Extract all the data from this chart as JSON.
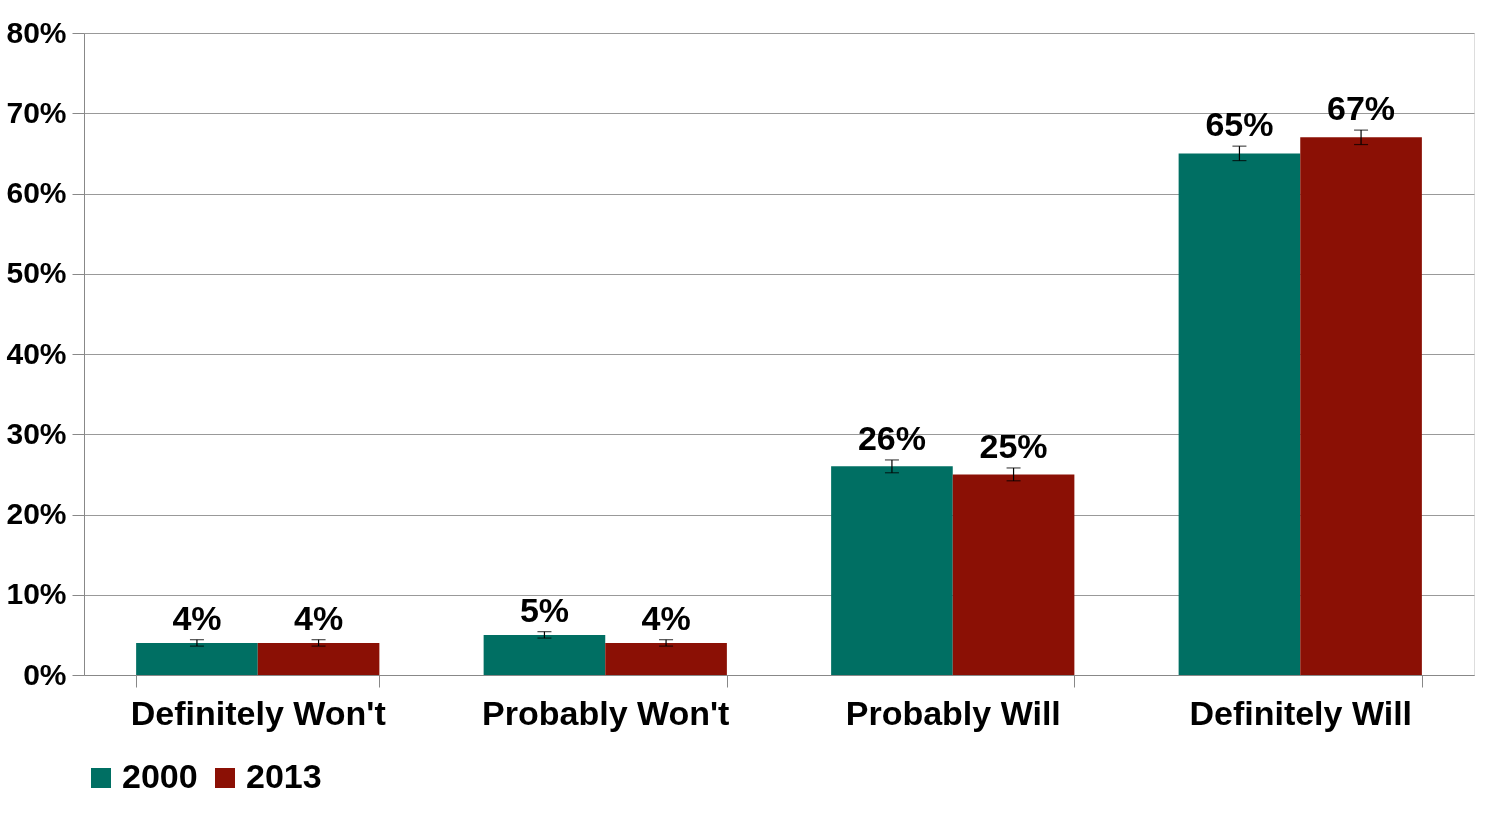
{
  "chart_data": {
    "type": "bar",
    "categories": [
      "Definitely Won't",
      "Probably Won't",
      "Probably Will",
      "Definitely Will"
    ],
    "series": [
      {
        "name": "2000",
        "color": "#006f63",
        "values": [
          4,
          5,
          26,
          65
        ],
        "errors": [
          0.4,
          0.4,
          0.8,
          0.9
        ],
        "value_labels": [
          "4%",
          "5%",
          "26%",
          "65%"
        ]
      },
      {
        "name": "2013",
        "color": "#8b1005",
        "values": [
          4,
          4,
          25,
          67
        ],
        "errors": [
          0.4,
          0.4,
          0.8,
          0.9
        ],
        "value_labels": [
          "4%",
          "4%",
          "25%",
          "67%"
        ]
      }
    ],
    "ylim": [
      0,
      80
    ],
    "yticks": [
      {
        "value": 0,
        "label": "0%"
      },
      {
        "value": 10,
        "label": "10%"
      },
      {
        "value": 20,
        "label": "20%"
      },
      {
        "value": 30,
        "label": "30%"
      },
      {
        "value": 40,
        "label": "40%"
      },
      {
        "value": 50,
        "label": "50%"
      },
      {
        "value": 60,
        "label": "60%"
      },
      {
        "value": 70,
        "label": "70%"
      },
      {
        "value": 80,
        "label": "80%"
      }
    ],
    "grid": "y",
    "legend": "bottom"
  }
}
